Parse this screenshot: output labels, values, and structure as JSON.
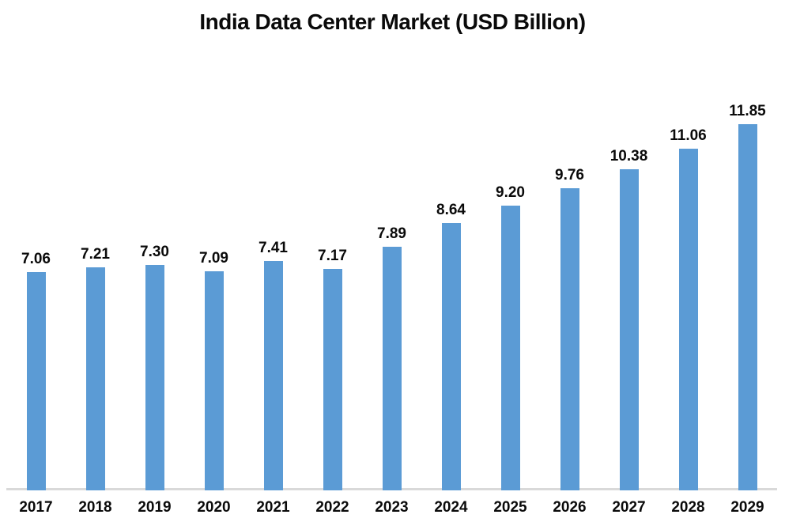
{
  "page": {
    "background_color": "#ffffff",
    "text_color": "#0a0a0a"
  },
  "chart_data": {
    "type": "bar",
    "title": "India Data Center Market (USD Billion)",
    "categories": [
      "2017",
      "2018",
      "2019",
      "2020",
      "2021",
      "2022",
      "2023",
      "2024",
      "2025",
      "2026",
      "2027",
      "2028",
      "2029"
    ],
    "values": [
      7.06,
      7.21,
      7.3,
      7.09,
      7.41,
      7.17,
      7.89,
      8.64,
      9.2,
      9.76,
      10.38,
      11.06,
      11.85
    ],
    "value_labels": [
      "7.06",
      "7.21",
      "7.30",
      "7.09",
      "7.41",
      "7.17",
      "7.89",
      "8.64",
      "9.20",
      "9.76",
      "10.38",
      "11.06",
      "11.85"
    ],
    "xlabel": "",
    "ylabel": "",
    "ylim": [
      0,
      12
    ],
    "grid": false,
    "legend": "none",
    "y_axis_visible": false,
    "data_labels_visible": true,
    "bar_color": "#5b9bd5",
    "axis_line_color": "#d9d9d9",
    "label_color": "#0a0a0a"
  }
}
